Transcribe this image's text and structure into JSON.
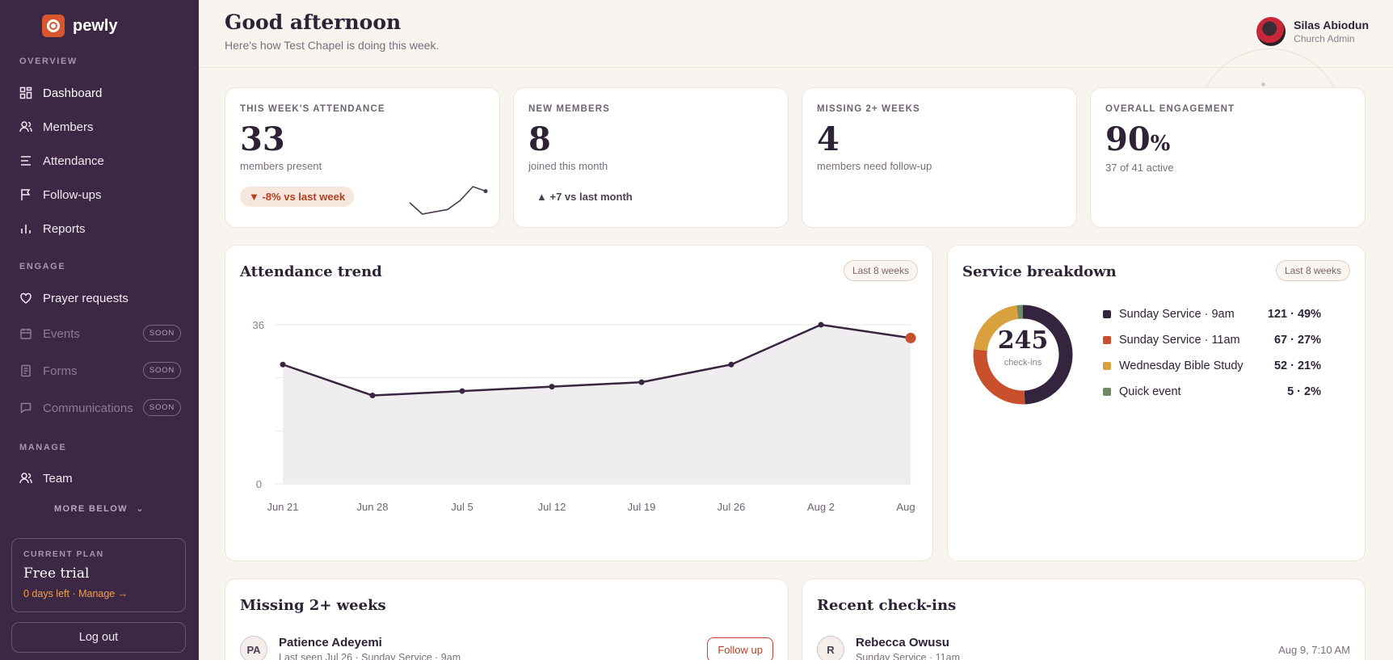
{
  "brand": {
    "name": "pewly"
  },
  "sidebar": {
    "sections": {
      "overview": "OVERVIEW",
      "engage": "ENGAGE",
      "manage": "MANAGE"
    },
    "items": [
      {
        "label": "Dashboard",
        "icon": "dashboard-icon"
      },
      {
        "label": "Members",
        "icon": "members-icon"
      },
      {
        "label": "Attendance",
        "icon": "attendance-icon"
      },
      {
        "label": "Follow-ups",
        "icon": "flag-icon"
      },
      {
        "label": "Reports",
        "icon": "bar-chart-icon"
      },
      {
        "label": "Prayer requests",
        "icon": "heart-icon"
      },
      {
        "label": "Events",
        "icon": "calendar-icon",
        "badge": "SOON"
      },
      {
        "label": "Forms",
        "icon": "form-icon",
        "badge": "SOON"
      },
      {
        "label": "Communications",
        "icon": "chat-icon",
        "badge": "SOON"
      },
      {
        "label": "Team",
        "icon": "team-icon"
      }
    ],
    "more_below": "MORE BELOW",
    "plan": {
      "label": "CURRENT PLAN",
      "name": "Free trial",
      "status": "0 days left · Manage →"
    },
    "logout": "Log out"
  },
  "header": {
    "greeting": "Good afternoon",
    "subtitle": "Here's how Test Chapel is doing this week.",
    "user": {
      "name": "Silas Abiodun",
      "role": "Church Admin"
    }
  },
  "stats": [
    {
      "label": "THIS WEEK'S ATTENDANCE",
      "value": "33",
      "sub": "members present",
      "badge": "▼ -8% vs last week"
    },
    {
      "label": "NEW MEMBERS",
      "value": "8",
      "sub": "joined this month",
      "badge": "▲ +7 vs last month"
    },
    {
      "label": "MISSING 2+ WEEKS",
      "value": "4",
      "sub": "members need follow-up"
    },
    {
      "label": "OVERALL ENGAGEMENT",
      "value": "90",
      "unit": "%",
      "sub": "37 of 41 active"
    }
  ],
  "trend": {
    "title": "Attendance trend",
    "range": "Last 8 weeks"
  },
  "breakdown": {
    "title": "Service breakdown",
    "range": "Last 8 weeks",
    "total": "245",
    "total_label": "check-ins"
  },
  "missing": {
    "title": "Missing 2+ weeks",
    "rows": [
      {
        "initials": "PA",
        "name": "Patience Adeyemi",
        "sub": "Last seen Jul 26 · Sunday Service · 9am",
        "action": "Follow up"
      }
    ]
  },
  "checkins": {
    "title": "Recent check-ins",
    "rows": [
      {
        "initials": "R",
        "name": "Rebecca Owusu",
        "sub": "Sunday Service · 11am",
        "time": "Aug 9, 7:10 AM"
      }
    ]
  },
  "colors": {
    "sidebar": "#3c2845",
    "accent": "#d8572f",
    "line": "#3a2540",
    "highlight": "#c8502d"
  },
  "chart_data": [
    {
      "type": "line",
      "categories": [
        "Jun 21",
        "Jun 28",
        "Jul 5",
        "Jul 12",
        "Jul 19",
        "Jul 26",
        "Aug 2",
        "Aug"
      ],
      "values": [
        27,
        20,
        21,
        22,
        23,
        27,
        36,
        33
      ],
      "ylim": [
        0,
        36
      ],
      "yticks": [
        "0",
        "36"
      ],
      "grid": true,
      "title": "Attendance trend"
    },
    {
      "type": "pie",
      "labels": [
        "Sunday Service · 9am",
        "Sunday Service · 11am",
        "Wednesday Bible Study",
        "Quick event"
      ],
      "values": [
        121,
        67,
        52,
        5
      ],
      "display": [
        "121 · 49%",
        "67 · 27%",
        "52 · 21%",
        "5 · 2%"
      ],
      "colors": [
        "#34243d",
        "#c8502d",
        "#d9a13e",
        "#6e8a62"
      ],
      "title": "Service breakdown"
    },
    {
      "type": "line",
      "values": [
        30,
        25,
        26,
        27,
        31,
        37,
        35
      ],
      "title": ""
    }
  ]
}
